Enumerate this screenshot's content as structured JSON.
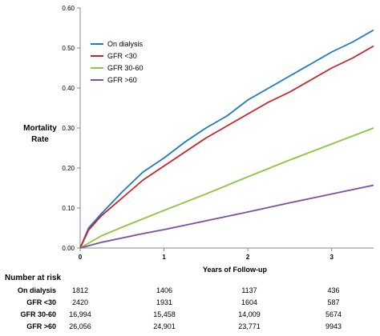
{
  "chart_data": {
    "type": "line",
    "title": "",
    "ylabel": [
      "Mortality",
      "Rate"
    ],
    "xlabel": "Years of Follow-up",
    "xlim": [
      0,
      3.5
    ],
    "ylim": [
      0,
      0.6
    ],
    "xticks": [
      "0",
      "1",
      "2",
      "3"
    ],
    "yticks": [
      "0.00",
      "0.10",
      "0.20",
      "0.30",
      "0.40",
      "0.50",
      "0.60"
    ],
    "grid": false,
    "legend_position": "top-left",
    "series": [
      {
        "name": "On dialysis",
        "color": "#1f78c8",
        "x": [
          0,
          0.1,
          0.25,
          0.5,
          0.75,
          1.0,
          1.25,
          1.5,
          1.75,
          2.0,
          2.25,
          2.5,
          2.75,
          3.0,
          3.25,
          3.5
        ],
        "y": [
          0,
          0.05,
          0.085,
          0.14,
          0.19,
          0.225,
          0.265,
          0.3,
          0.33,
          0.37,
          0.4,
          0.43,
          0.46,
          0.49,
          0.515,
          0.545
        ]
      },
      {
        "name": "GFR <30",
        "color": "#cc2229",
        "x": [
          0,
          0.1,
          0.25,
          0.5,
          0.75,
          1.0,
          1.25,
          1.5,
          1.75,
          2.0,
          2.25,
          2.5,
          2.75,
          3.0,
          3.25,
          3.5
        ],
        "y": [
          0,
          0.045,
          0.08,
          0.125,
          0.17,
          0.205,
          0.24,
          0.275,
          0.305,
          0.335,
          0.365,
          0.39,
          0.42,
          0.45,
          0.475,
          0.505
        ]
      },
      {
        "name": "GFR 30-60",
        "color": "#8dc63f",
        "x": [
          0,
          0.25,
          0.5,
          0.75,
          1.0,
          1.5,
          2.0,
          2.5,
          3.0,
          3.5
        ],
        "y": [
          0,
          0.03,
          0.052,
          0.073,
          0.094,
          0.135,
          0.178,
          0.22,
          0.26,
          0.3
        ]
      },
      {
        "name": "GFR >60",
        "color": "#7b4fa1",
        "x": [
          0,
          0.25,
          0.5,
          0.75,
          1.0,
          1.5,
          2.0,
          2.5,
          3.0,
          3.5
        ],
        "y": [
          0,
          0.014,
          0.025,
          0.036,
          0.046,
          0.068,
          0.09,
          0.113,
          0.135,
          0.157
        ]
      }
    ]
  },
  "risk_table": {
    "title": "Number at risk",
    "rows": [
      {
        "label": "On dialysis",
        "values": [
          "1812",
          "1406",
          "1137",
          "436"
        ]
      },
      {
        "label": "GFR <30",
        "values": [
          "2420",
          "1931",
          "1604",
          "587"
        ]
      },
      {
        "label": "GFR 30-60",
        "values": [
          "16,994",
          "15,458",
          "14,009",
          "5674"
        ]
      },
      {
        "label": "GFR >60",
        "values": [
          "26,056",
          "24,901",
          "23,771",
          "9943"
        ]
      }
    ]
  }
}
